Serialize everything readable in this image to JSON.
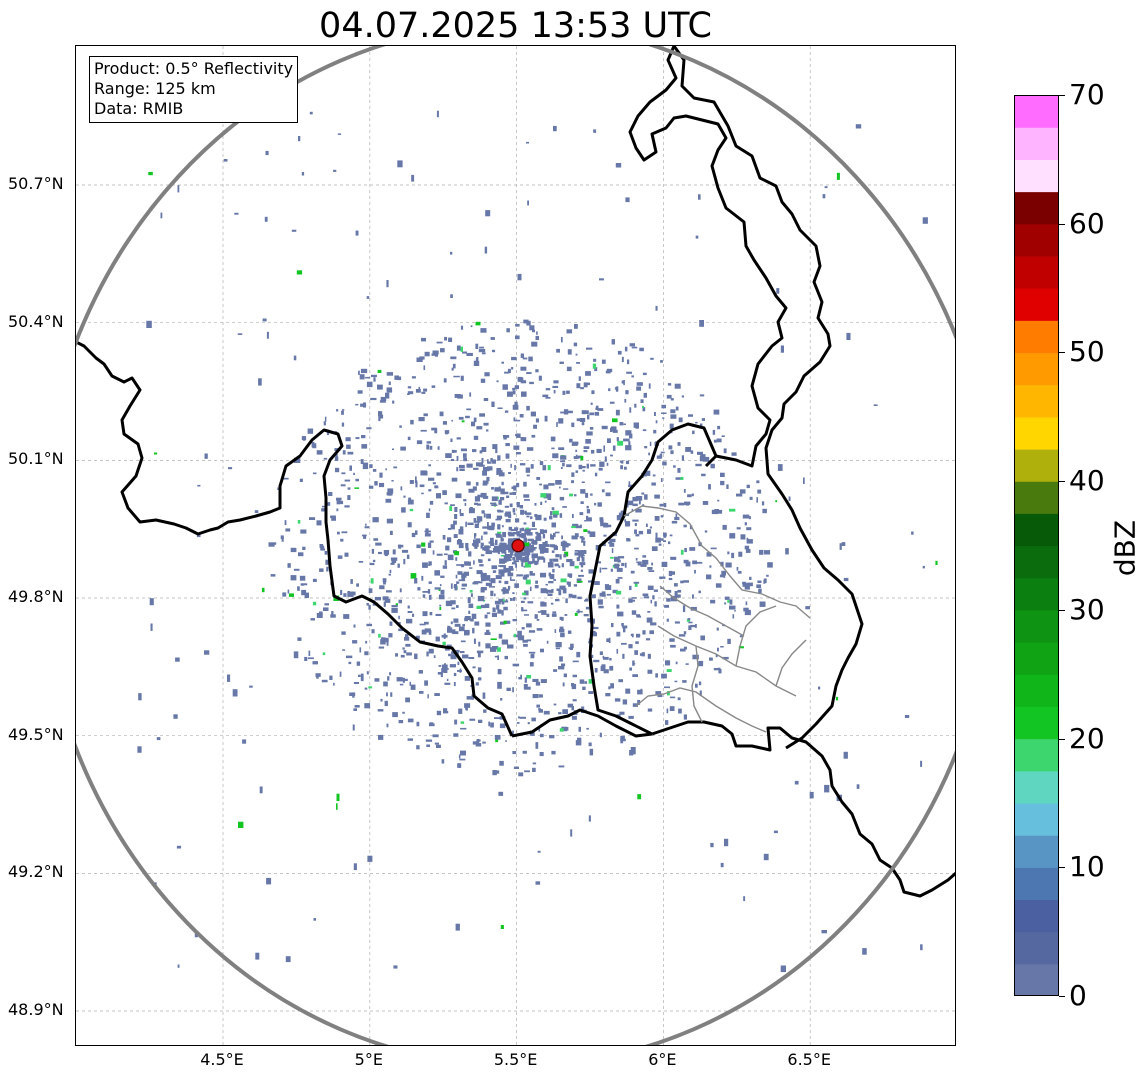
{
  "title": "04.07.2025 13:53 UTC",
  "info_box": {
    "product": "Product: 0.5° Reflectivity",
    "range": "Range: 125 km",
    "data": "Data: RMIB"
  },
  "axes": {
    "lat_ticks": [
      {
        "value": 50.7,
        "label": "50.7°N"
      },
      {
        "value": 50.4,
        "label": "50.4°N"
      },
      {
        "value": 50.1,
        "label": "50.1°N"
      },
      {
        "value": 49.8,
        "label": "49.8°N"
      },
      {
        "value": 49.5,
        "label": "49.5°N"
      },
      {
        "value": 49.2,
        "label": "49.2°N"
      },
      {
        "value": 48.9,
        "label": "48.9°N"
      }
    ],
    "lon_ticks": [
      {
        "value": 4.5,
        "label": "4.5°E"
      },
      {
        "value": 5.0,
        "label": "5°E"
      },
      {
        "value": 5.5,
        "label": "5.5°E"
      },
      {
        "value": 6.0,
        "label": "6°E"
      },
      {
        "value": 6.5,
        "label": "6.5°E"
      }
    ]
  },
  "radar_site": {
    "lon": 5.505,
    "lat": 49.914,
    "color": "#e01010"
  },
  "colorbar": {
    "label": "dBZ",
    "min": 0,
    "max": 70,
    "step": 2.5,
    "tick_labels": [
      "0",
      "10",
      "20",
      "30",
      "40",
      "50",
      "60",
      "70"
    ],
    "colors": [
      "#6677a8",
      "#5668a0",
      "#4a60a0",
      "#4c77b0",
      "#5895c4",
      "#66bfdd",
      "#5ed6c0",
      "#3dd66e",
      "#12c522",
      "#10b519",
      "#10a414",
      "#0e9412",
      "#0b8010",
      "#0a6c0c",
      "#075a08",
      "#487a0e",
      "#b0b00c",
      "#ffd600",
      "#ffb600",
      "#ff9a00",
      "#ff7c00",
      "#e00000",
      "#c00000",
      "#a00000",
      "#7a0000",
      "#ffe0ff",
      "#ffb4ff",
      "#ff6cff",
      "#ea34ea"
    ]
  },
  "colors": {
    "border": "#000000",
    "province_border": "#888888",
    "range_ring": "#808080",
    "grid": "#b0b0b0",
    "weak_echo": "#6677a8",
    "moderate_echo": "#3dd66e",
    "strong_echo": "#12c522"
  }
}
